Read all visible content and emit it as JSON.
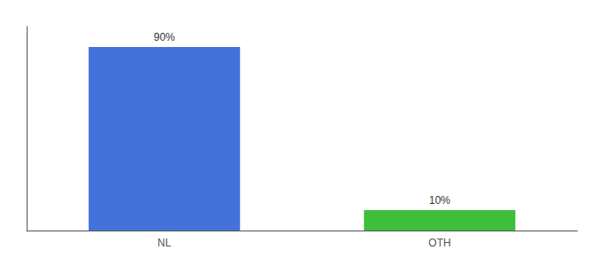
{
  "chart_data": {
    "type": "bar",
    "categories": [
      "NL",
      "OTH"
    ],
    "values": [
      90,
      10
    ],
    "colors": [
      "#4472db",
      "#3dbf3d"
    ],
    "value_labels": [
      "90%",
      "10%"
    ],
    "data_labels": true,
    "ylim": [
      0,
      100
    ],
    "tick_labels": "x",
    "grid": false
  }
}
